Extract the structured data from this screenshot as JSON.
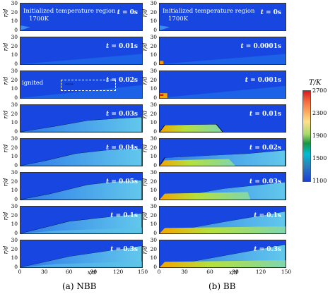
{
  "left_column": {
    "caption": "(a) NBB",
    "panels": [
      {
        "t_prefix": "t",
        "t_value": " = 0s"
      },
      {
        "t_prefix": "t",
        "t_value": " = 0.01s"
      },
      {
        "t_prefix": "t",
        "t_value": " = 0.02s"
      },
      {
        "t_prefix": "t",
        "t_value": " = 0.03s"
      },
      {
        "t_prefix": "t",
        "t_value": " = 0.04s"
      },
      {
        "t_prefix": "t",
        "t_value": " = 0.05s"
      },
      {
        "t_prefix": "t",
        "t_value": " = 0.1s"
      },
      {
        "t_prefix": "t",
        "t_value": " = 0.3s"
      }
    ],
    "annotation_region": "Initialized temperature region",
    "annotation_temp": "1700K",
    "ignited_label": "ignited"
  },
  "right_column": {
    "caption": "(b) BB",
    "panels": [
      {
        "t_prefix": "t",
        "t_value": " = 0s"
      },
      {
        "t_prefix": "t",
        "t_value": " = 0.0001s"
      },
      {
        "t_prefix": "t",
        "t_value": " = 0.001s"
      },
      {
        "t_prefix": "t",
        "t_value": " = 0.01s"
      },
      {
        "t_prefix": "t",
        "t_value": " = 0.02s"
      },
      {
        "t_prefix": "t",
        "t_value": " = 0.03s"
      },
      {
        "t_prefix": "t",
        "t_value": " = 0.1s"
      },
      {
        "t_prefix": "t",
        "t_value": " = 0.3s"
      }
    ],
    "annotation_region": "Initialized temperature region",
    "annotation_temp": "1700K"
  },
  "axes": {
    "y_label": "r/d",
    "x_label": "x/d",
    "y_ticks": [
      "30",
      "20",
      "10",
      "0"
    ],
    "x_ticks": [
      "0",
      "30",
      "60",
      "90",
      "120",
      "150"
    ]
  },
  "colorbar": {
    "title": "T/K",
    "ticks": [
      "2700",
      "2300",
      "1900",
      "1500",
      "1100"
    ],
    "colors": [
      "#d7191c",
      "#fdae61",
      "#a6d96a",
      "#1a9641",
      "#2b83ba",
      "#1a3fd9"
    ]
  }
}
